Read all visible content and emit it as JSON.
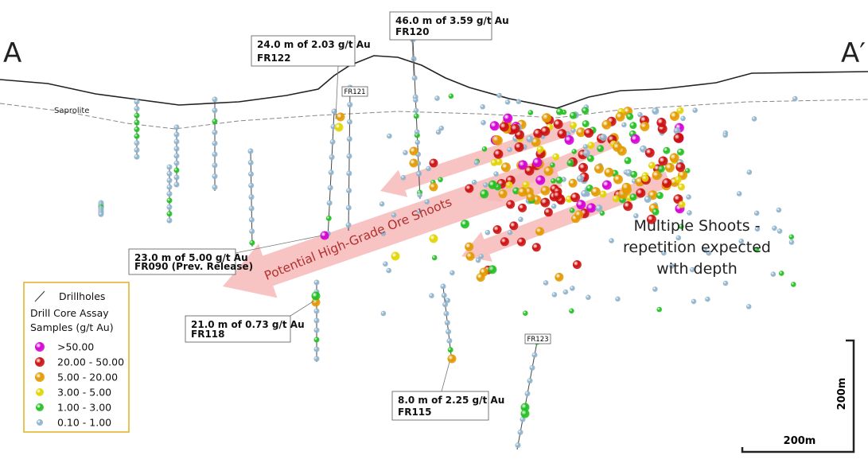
{
  "section": {
    "start": "A",
    "end": "A′"
  },
  "labels": {
    "saprolite": "Saprolite",
    "hole_tags": [
      "FR121",
      "FR123"
    ]
  },
  "callouts": [
    {
      "line1": "24.0 m of 2.03 g/t Au",
      "line2": "FR122"
    },
    {
      "line1": "46.0 m of 3.59 g/t Au",
      "line2": "FR120"
    },
    {
      "line1": "23.0 m of 5.00 g/t Au",
      "line2": "FR090 (Prev. Release)"
    },
    {
      "line1": "21.0 m of 0.73 g/t Au",
      "line2": "FR118"
    },
    {
      "line1": "8.0 m of 2.25 g/t Au",
      "line2": "FR115"
    }
  ],
  "arrow_label": "Potential High-Grade Ore Shoots",
  "note": [
    "Multiple Shoots -",
    "repetition expected",
    "with depth"
  ],
  "legend": {
    "drillholes": "Drillholes",
    "title": [
      "Drill Core Assay",
      "Samples (g/t Au)"
    ],
    "items": [
      ">50.00",
      "20.00 - 50.00",
      "5.00 - 20.00",
      "3.00 - 5.00",
      "1.00 - 3.00",
      "0.10 - 1.00"
    ]
  },
  "scale": {
    "vertical": "200m",
    "horizontal": "200m"
  }
}
